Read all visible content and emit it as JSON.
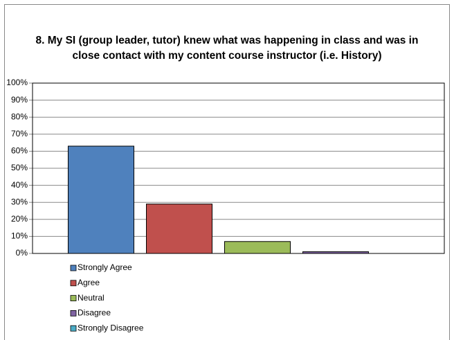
{
  "chart_data": {
    "type": "bar",
    "title": "8. My SI (group leader, tutor) knew what was happening in class and was in close contact with my content course instructor (i.e. History)",
    "categories": [
      "Strongly Agree",
      "Agree",
      "Neutral",
      "Disagree",
      "Strongly Disagree"
    ],
    "values": [
      63,
      29,
      7,
      1,
      0
    ],
    "colors": [
      "#4f81bd",
      "#c0504d",
      "#9bbb59",
      "#8064a2",
      "#4bacc6"
    ],
    "ylim": [
      0,
      100
    ],
    "yticks": [
      {
        "value": 0,
        "label": "0%"
      },
      {
        "value": 10,
        "label": "10%"
      },
      {
        "value": 20,
        "label": "20%"
      },
      {
        "value": 30,
        "label": "30%"
      },
      {
        "value": 40,
        "label": "40%"
      },
      {
        "value": 50,
        "label": "50%"
      },
      {
        "value": 60,
        "label": "60%"
      },
      {
        "value": 70,
        "label": "70%"
      },
      {
        "value": 80,
        "label": "80%"
      },
      {
        "value": 90,
        "label": "90%"
      },
      {
        "value": 100,
        "label": "100%"
      }
    ],
    "grid": true,
    "legend": "bottom-left"
  }
}
